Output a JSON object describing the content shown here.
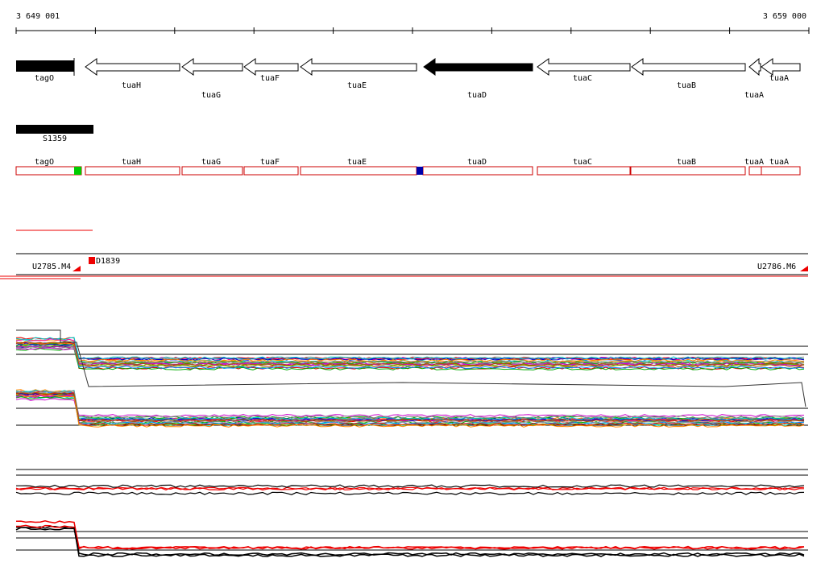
{
  "ruler": {
    "start": "3 649 001",
    "end": "3 659 000"
  },
  "genes": [
    {
      "label": "tagO"
    },
    {
      "label": "tuaH"
    },
    {
      "label": "tuaG"
    },
    {
      "label": "tuaF"
    },
    {
      "label": "tuaE"
    },
    {
      "label": "tuaD"
    },
    {
      "label": "tuaC"
    },
    {
      "label": "tuaB"
    },
    {
      "label": "tuaA"
    },
    {
      "label": "tuaA"
    }
  ],
  "promoter": {
    "label": "S1359"
  },
  "segments": [
    {
      "label": "tagO"
    },
    {
      "label": "tuaH"
    },
    {
      "label": "tuaG"
    },
    {
      "label": "tuaF"
    },
    {
      "label": "tuaE"
    },
    {
      "label": "tuaD"
    },
    {
      "label": "tuaC"
    },
    {
      "label": "tuaB"
    },
    {
      "label": "tuaA"
    },
    {
      "label": "tuaA"
    }
  ],
  "probes": [
    {
      "label": "U2785.M4"
    },
    {
      "label": "D1839"
    },
    {
      "label": "U2786.M6"
    }
  ]
}
